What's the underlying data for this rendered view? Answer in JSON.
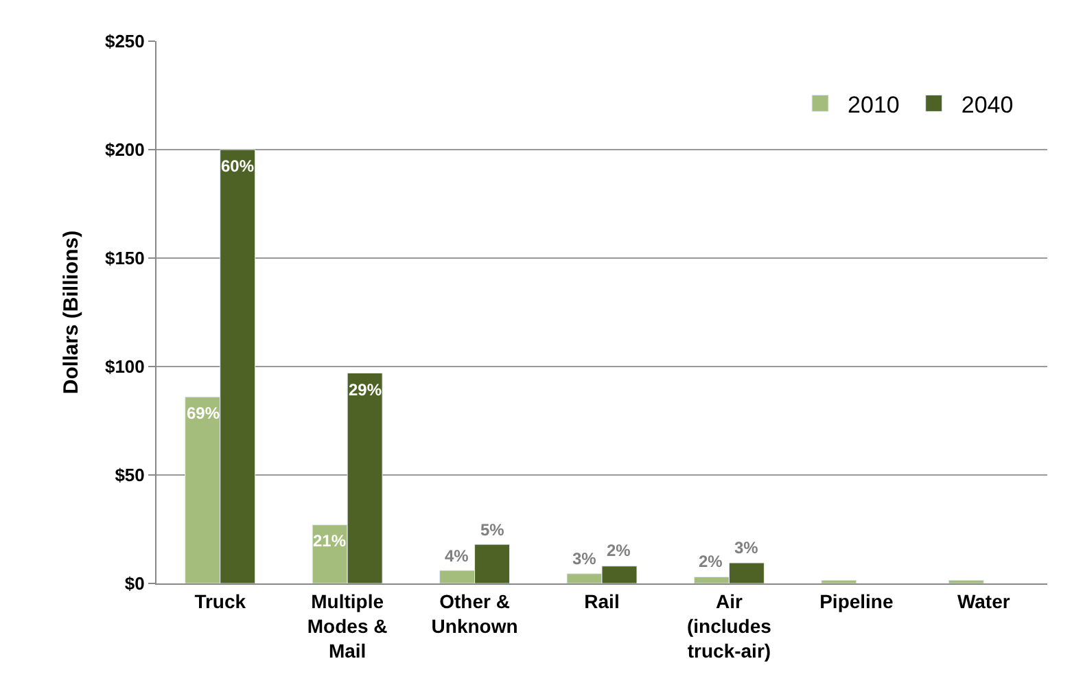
{
  "chart_data": {
    "type": "bar",
    "ylabel": "Dollars (Billions)",
    "categories": [
      "Truck",
      "Multiple Modes & Mail",
      "Other & Unknown",
      "Rail",
      "Air (includes truck-air)",
      "Pipeline",
      "Water"
    ],
    "series": [
      {
        "name": "2010",
        "color": "#a4bd7c",
        "values": [
          86,
          27,
          6,
          4.5,
          3,
          1.5,
          1.5
        ]
      },
      {
        "name": "2040",
        "color": "#4e6226",
        "values": [
          200,
          97,
          18,
          8,
          9.5,
          null,
          null
        ]
      }
    ],
    "annotations": [
      {
        "text": "69%",
        "x": "Truck",
        "y": 86
      },
      {
        "text": "21%",
        "x": "Multiple Modes & Mail",
        "y": 27
      },
      {
        "text": "4%",
        "x": "Other & Unknown",
        "y": 6
      },
      {
        "text": "3%",
        "x": "Rail",
        "y": 4.5
      },
      {
        "text": "2%",
        "x": "Air (includes truck-air)",
        "y": 3
      },
      {
        "text": "60%",
        "x": "Truck",
        "y": 200
      },
      {
        "text": "29%",
        "x": "Multiple Modes & Mail",
        "y": 97
      },
      {
        "text": "5%",
        "x": "Other & Unknown",
        "y": 18
      },
      {
        "text": "2%",
        "x": "Rail",
        "y": 8
      },
      {
        "text": "3%",
        "x": "Air (includes truck-air)",
        "y": 9.5
      }
    ],
    "ylim": [
      0,
      250
    ],
    "yticks": [
      {
        "value": 0,
        "label": "$0"
      },
      {
        "value": 50,
        "label": "$50"
      },
      {
        "value": 100,
        "label": "$100"
      },
      {
        "value": 150,
        "label": "$150"
      },
      {
        "value": 200,
        "label": "$200"
      },
      {
        "value": 250,
        "label": "$250"
      }
    ],
    "grid": "y",
    "legend": "top right"
  }
}
